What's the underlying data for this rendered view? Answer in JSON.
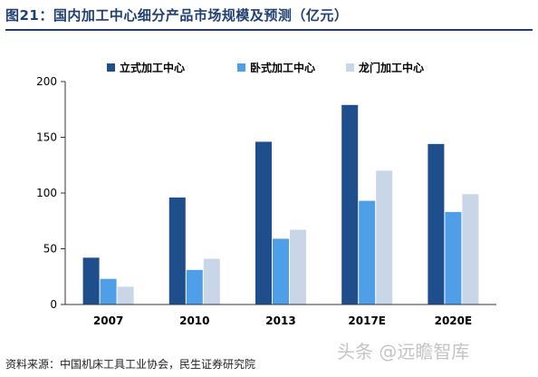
{
  "title": "图21：国内加工中心细分产品市场规模及预测（亿元）",
  "source": "资料来源：中国机床工具工业协会，民生证券研究院",
  "watermark": "头条 @远瞻智库",
  "colors": {
    "title": "#1f3f73",
    "series": [
      "#1f4e8c",
      "#4f9fe8",
      "#c8d6e8"
    ]
  },
  "chart_data": {
    "type": "bar",
    "categories": [
      "2007",
      "2010",
      "2013",
      "2017E",
      "2020E"
    ],
    "series": [
      {
        "name": "立式加工中心",
        "values": [
          42,
          96,
          146,
          179,
          144
        ]
      },
      {
        "name": "卧式加工中心",
        "values": [
          23,
          31,
          59,
          93,
          83
        ]
      },
      {
        "name": "龙门加工中心",
        "values": [
          16,
          41,
          67,
          120,
          99
        ]
      }
    ],
    "ylim": [
      0,
      200
    ],
    "yticks": [
      0,
      50,
      100,
      150,
      200
    ],
    "grid": false,
    "legend": "top"
  }
}
